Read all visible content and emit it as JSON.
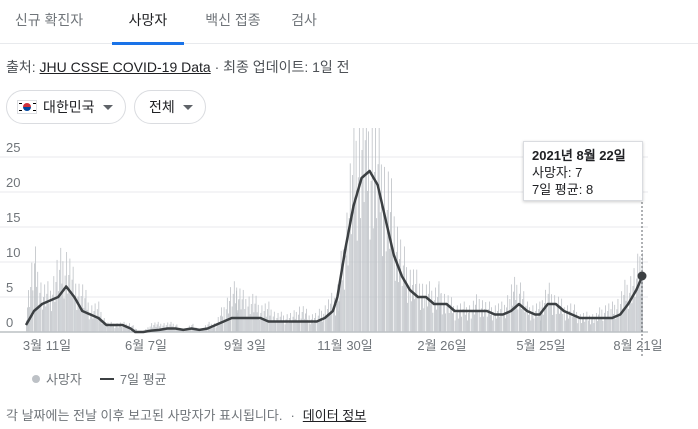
{
  "tabs": [
    {
      "label": "신규 확진자",
      "active": false
    },
    {
      "label": "사망자",
      "active": true
    },
    {
      "label": "백신 접종",
      "active": false
    },
    {
      "label": "검사",
      "active": false
    }
  ],
  "source": {
    "prefix": "출처: ",
    "link": "JHU CSSE COVID-19 Data",
    "suffix": " · 최종 업데이트: 1일 전"
  },
  "filters": {
    "country": "대한민국",
    "range": "전체"
  },
  "tooltip": {
    "date": "2021년 8월 22일",
    "deaths": "사망자: 7",
    "avg": "7일 평균: 8"
  },
  "legend": {
    "bars": "사망자",
    "line": "7일 평균"
  },
  "footer": {
    "note": "각 날짜에는 전날 이후 보고된 사망자가 표시됩니다.",
    "link": "데이터 정보"
  },
  "chart_data": {
    "type": "bar",
    "ylim": [
      0,
      28
    ],
    "yticks": [
      0,
      5,
      10,
      15,
      20,
      25
    ],
    "x_tick_labels": [
      "3월 11일",
      "6월 7일",
      "9월 3일",
      "11월 30일",
      "2월 26일",
      "5월 25일",
      "8월 21일"
    ],
    "series": [
      {
        "name": "사망자",
        "x": [
          "2020-03-04",
          "2020-03-11",
          "2020-03-18",
          "2020-03-25",
          "2020-04-01",
          "2020-04-08",
          "2020-04-15",
          "2020-04-22",
          "2020-04-29",
          "2020-05-06",
          "2020-05-13",
          "2020-05-20",
          "2020-05-27",
          "2020-06-03",
          "2020-06-07",
          "2020-06-14",
          "2020-06-21",
          "2020-06-28",
          "2020-07-05",
          "2020-07-12",
          "2020-07-19",
          "2020-07-26",
          "2020-08-02",
          "2020-08-09",
          "2020-08-16",
          "2020-08-23",
          "2020-08-30",
          "2020-09-03",
          "2020-09-10",
          "2020-09-17",
          "2020-09-24",
          "2020-10-01",
          "2020-10-08",
          "2020-10-15",
          "2020-10-22",
          "2020-10-29",
          "2020-11-05",
          "2020-11-12",
          "2020-11-19",
          "2020-11-26",
          "2020-11-30",
          "2020-12-07",
          "2020-12-14",
          "2020-12-21",
          "2020-12-28",
          "2021-01-04",
          "2021-01-11",
          "2021-01-18",
          "2021-01-25",
          "2021-02-01",
          "2021-02-08",
          "2021-02-15",
          "2021-02-22",
          "2021-02-26",
          "2021-03-05",
          "2021-03-12",
          "2021-03-19",
          "2021-03-26",
          "2021-04-02",
          "2021-04-09",
          "2021-04-16",
          "2021-04-23",
          "2021-04-30",
          "2021-05-07",
          "2021-05-14",
          "2021-05-21",
          "2021-05-25",
          "2021-06-01",
          "2021-06-08",
          "2021-06-15",
          "2021-06-22",
          "2021-06-29",
          "2021-07-06",
          "2021-07-13",
          "2021-07-20",
          "2021-07-27",
          "2021-08-03",
          "2021-08-10",
          "2021-08-17",
          "2021-08-21",
          "2021-08-22"
        ],
        "values": [
          3,
          9,
          5,
          5,
          8,
          9,
          6,
          5,
          3,
          3,
          1,
          1,
          1,
          1,
          0,
          0,
          1,
          1,
          1,
          1,
          0,
          1,
          0,
          1,
          1,
          3,
          5,
          5,
          4,
          4,
          3,
          3,
          2,
          2,
          2,
          3,
          2,
          2,
          3,
          4,
          5,
          12,
          22,
          26,
          24,
          22,
          18,
          14,
          9,
          7,
          6,
          5,
          5,
          5,
          4,
          3,
          3,
          3,
          4,
          3,
          3,
          3,
          5,
          6,
          3,
          3,
          3,
          5,
          4,
          3,
          3,
          2,
          2,
          2,
          3,
          3,
          4,
          6,
          7,
          12,
          7
        ]
      },
      {
        "name": "7일 평균",
        "x": [
          "2020-03-04",
          "2020-03-11",
          "2020-03-18",
          "2020-03-25",
          "2020-04-01",
          "2020-04-08",
          "2020-04-15",
          "2020-04-22",
          "2020-04-29",
          "2020-05-06",
          "2020-05-13",
          "2020-05-20",
          "2020-05-27",
          "2020-06-03",
          "2020-06-07",
          "2020-06-14",
          "2020-06-21",
          "2020-06-28",
          "2020-07-05",
          "2020-07-12",
          "2020-07-19",
          "2020-07-26",
          "2020-08-02",
          "2020-08-09",
          "2020-08-16",
          "2020-08-23",
          "2020-08-30",
          "2020-09-03",
          "2020-09-10",
          "2020-09-17",
          "2020-09-24",
          "2020-10-01",
          "2020-10-08",
          "2020-10-15",
          "2020-10-22",
          "2020-10-29",
          "2020-11-05",
          "2020-11-12",
          "2020-11-19",
          "2020-11-26",
          "2020-11-30",
          "2020-12-07",
          "2020-12-14",
          "2020-12-21",
          "2020-12-28",
          "2021-01-04",
          "2021-01-11",
          "2021-01-18",
          "2021-01-25",
          "2021-02-01",
          "2021-02-08",
          "2021-02-15",
          "2021-02-22",
          "2021-02-26",
          "2021-03-05",
          "2021-03-12",
          "2021-03-19",
          "2021-03-26",
          "2021-04-02",
          "2021-04-09",
          "2021-04-16",
          "2021-04-23",
          "2021-04-30",
          "2021-05-07",
          "2021-05-14",
          "2021-05-21",
          "2021-05-25",
          "2021-06-01",
          "2021-06-08",
          "2021-06-15",
          "2021-06-22",
          "2021-06-29",
          "2021-07-06",
          "2021-07-13",
          "2021-07-20",
          "2021-07-27",
          "2021-08-03",
          "2021-08-10",
          "2021-08-17",
          "2021-08-21",
          "2021-08-22"
        ],
        "values": [
          1,
          3,
          4,
          4.5,
          5,
          6.5,
          5,
          3,
          2.5,
          2,
          1,
          1,
          1,
          0.5,
          0,
          0,
          0.2,
          0.3,
          0.5,
          0.5,
          0.3,
          0.5,
          0.3,
          0.5,
          1,
          1.5,
          2,
          2,
          2,
          2,
          2,
          1.5,
          1.5,
          1.5,
          1.5,
          1.5,
          1.5,
          1.5,
          2,
          3,
          5,
          12,
          18,
          22,
          23,
          21,
          16,
          11,
          8,
          6,
          5,
          5,
          4,
          4,
          4,
          3,
          3,
          3,
          3,
          3,
          2.5,
          2.5,
          3,
          4,
          3,
          2.5,
          2.5,
          4,
          4,
          3,
          2.5,
          2,
          2,
          2,
          2,
          2,
          2.5,
          4,
          6,
          7.5,
          8
        ]
      }
    ],
    "highlight": {
      "x": "2021-08-22",
      "deaths": 7,
      "avg": 8
    }
  },
  "colors": {
    "bars": "#bdc1c6",
    "line": "#3c4043",
    "accent": "#1a73e8"
  }
}
